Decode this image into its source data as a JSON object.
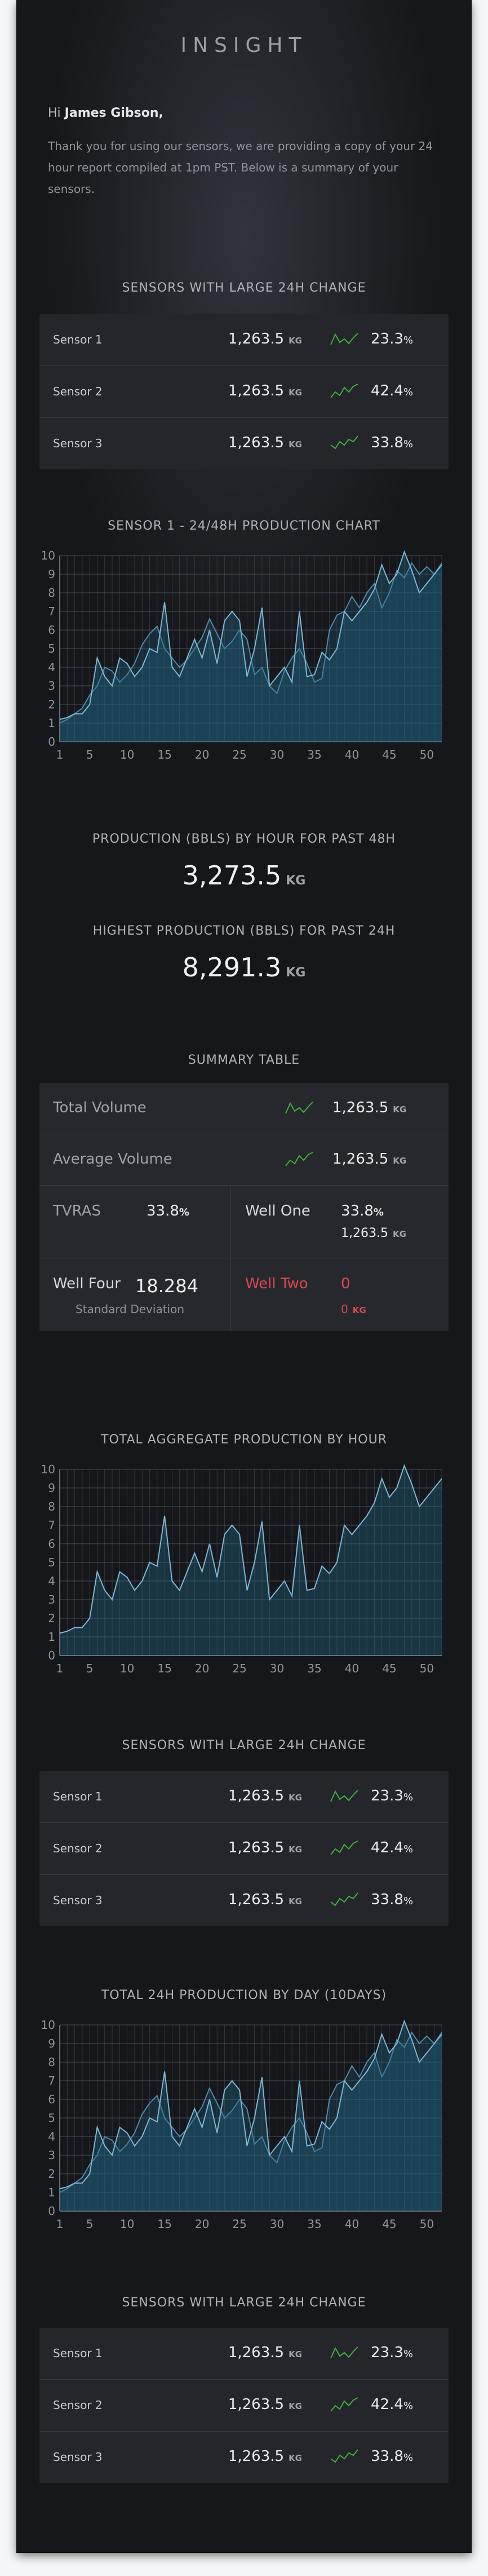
{
  "brand": "INSIGHT",
  "greeting": {
    "prefix": "Hi",
    "name": "James Gibson,"
  },
  "intro": "Thank you for using our sensors, we are providing a copy of your 24 hour report compiled at 1pm PST. Below is a summary of your sensors.",
  "sections": {
    "s1": "SENSORS WITH LARGE 24H CHANGE",
    "chart1": "SENSOR 1 - 24/48H PRODUCTION CHART",
    "prod48": "PRODUCTION (BBLS) BY HOUR FOR PAST 48H",
    "high24": "HIGHEST PRODUCTION (BBLS) FOR PAST 24H",
    "summary": "SUMMARY TABLE",
    "chart2": "TOTAL AGGREGATE PRODUCTION BY HOUR",
    "s2": "SENSORS WITH LARGE 24H CHANGE",
    "chart3": "TOTAL 24H PRODUCTION BY DAY (10DAYS)",
    "s3": "SENSORS WITH LARGE 24H CHANGE"
  },
  "unit": "KG",
  "percent_sign": "%",
  "sensors": [
    {
      "name": "Sensor 1",
      "value": "1,263.5",
      "pct": "23.3"
    },
    {
      "name": "Sensor 2",
      "value": "1,263.5",
      "pct": "42.4"
    },
    {
      "name": "Sensor 3",
      "value": "1,263.5",
      "pct": "33.8"
    }
  ],
  "stats": {
    "prod48_value": "3,273.5",
    "high24_value": "8,291.3"
  },
  "summary": {
    "total_volume_label": "Total Volume",
    "total_volume_value": "1,263.5",
    "average_volume_label": "Average Volume",
    "average_volume_value": "1,263.5",
    "tvras_label": "TVRAS",
    "tvras_value": "33.8",
    "well_one_label": "Well One",
    "well_one_pct": "33.8",
    "well_one_value": "1,263.5",
    "well_four_label": "Well Four",
    "well_four_value": "18.284",
    "well_four_sub": "Standard Deviation",
    "well_two_label": "Well Two",
    "well_two_value": "0",
    "well_two_sub": "0"
  },
  "colors": {
    "background": "#16171b",
    "line": "#6fa9c9",
    "fill": "#1d4a5e",
    "green": "#3fae3a",
    "red": "#d9484f",
    "grid": "#3a3d44"
  },
  "chart_data": [
    {
      "type": "area",
      "title": "SENSOR 1 - 24/48H PRODUCTION CHART",
      "xlim": [
        1,
        52
      ],
      "ylim": [
        0,
        10
      ],
      "x_ticks": [
        1,
        5,
        10,
        15,
        20,
        25,
        30,
        35,
        40,
        45,
        50
      ],
      "y_ticks": [
        0,
        1,
        2,
        3,
        4,
        5,
        6,
        7,
        8,
        9,
        10
      ],
      "series": [
        {
          "values": [
            1.2,
            1.3,
            1.5,
            1.5,
            2.0,
            4.5,
            3.5,
            3.0,
            4.5,
            4.2,
            3.5,
            4.0,
            5.0,
            4.8,
            7.5,
            4.0,
            3.5,
            4.5,
            5.5,
            4.5,
            6.0,
            4.2,
            6.5,
            7.0,
            6.5,
            3.5,
            5.0,
            7.2,
            3.0,
            3.5,
            4.0,
            3.2,
            7.0,
            3.5,
            3.6,
            4.8,
            4.4,
            5.0,
            7.0,
            6.5,
            7.0,
            7.5,
            8.2,
            9.5,
            8.5,
            9.0,
            10.2,
            9.2,
            8.0,
            8.5,
            9.0,
            9.5
          ]
        },
        {
          "values": [
            1.0,
            1.2,
            1.5,
            1.8,
            2.5,
            3.0,
            4.0,
            3.8,
            3.2,
            3.6,
            4.2,
            5.2,
            5.8,
            6.2,
            5.0,
            4.5,
            4.0,
            4.4,
            5.0,
            5.6,
            6.6,
            5.8,
            5.0,
            5.4,
            6.0,
            5.5,
            3.6,
            4.0,
            3.0,
            2.6,
            3.8,
            4.5,
            5.0,
            4.2,
            3.2,
            3.4,
            6.0,
            6.8,
            7.0,
            7.8,
            7.2,
            8.0,
            8.5,
            7.2,
            8.0,
            9.2,
            8.8,
            9.6,
            9.0,
            9.4,
            9.0,
            9.6
          ]
        }
      ]
    },
    {
      "type": "area",
      "title": "TOTAL AGGREGATE PRODUCTION BY HOUR",
      "xlim": [
        1,
        52
      ],
      "ylim": [
        0,
        10
      ],
      "x_ticks": [
        1,
        5,
        10,
        15,
        20,
        25,
        30,
        35,
        40,
        45,
        50
      ],
      "y_ticks": [
        0,
        1,
        2,
        3,
        4,
        5,
        6,
        7,
        8,
        9,
        10
      ],
      "series": [
        {
          "values": [
            1.2,
            1.3,
            1.5,
            1.5,
            2.0,
            4.5,
            3.5,
            3.0,
            4.5,
            4.2,
            3.5,
            4.0,
            5.0,
            4.8,
            7.5,
            4.0,
            3.5,
            4.5,
            5.5,
            4.5,
            6.0,
            4.2,
            6.5,
            7.0,
            6.5,
            3.5,
            5.0,
            7.2,
            3.0,
            3.5,
            4.0,
            3.2,
            7.0,
            3.5,
            3.6,
            4.8,
            4.4,
            5.0,
            7.0,
            6.5,
            7.0,
            7.5,
            8.2,
            9.5,
            8.5,
            9.0,
            10.2,
            9.2,
            8.0,
            8.5,
            9.0,
            9.5
          ]
        }
      ]
    },
    {
      "type": "area",
      "title": "TOTAL 24H PRODUCTION BY DAY (10DAYS)",
      "xlim": [
        1,
        52
      ],
      "ylim": [
        0,
        10
      ],
      "x_ticks": [
        1,
        5,
        10,
        15,
        20,
        25,
        30,
        35,
        40,
        45,
        50
      ],
      "y_ticks": [
        0,
        1,
        2,
        3,
        4,
        5,
        6,
        7,
        8,
        9,
        10
      ],
      "series": [
        {
          "values": [
            1.2,
            1.3,
            1.5,
            1.5,
            2.0,
            4.5,
            3.5,
            3.0,
            4.5,
            4.2,
            3.5,
            4.0,
            5.0,
            4.8,
            7.5,
            4.0,
            3.5,
            4.5,
            5.5,
            4.5,
            6.0,
            4.2,
            6.5,
            7.0,
            6.5,
            3.5,
            5.0,
            7.2,
            3.0,
            3.5,
            4.0,
            3.2,
            7.0,
            3.5,
            3.6,
            4.8,
            4.4,
            5.0,
            7.0,
            6.5,
            7.0,
            7.5,
            8.2,
            9.5,
            8.5,
            9.0,
            10.2,
            9.2,
            8.0,
            8.5,
            9.0,
            9.5
          ]
        },
        {
          "values": [
            1.0,
            1.2,
            1.5,
            1.8,
            2.5,
            3.0,
            4.0,
            3.8,
            3.2,
            3.6,
            4.2,
            5.2,
            5.8,
            6.2,
            5.0,
            4.5,
            4.0,
            4.4,
            5.0,
            5.6,
            6.6,
            5.8,
            5.0,
            5.4,
            6.0,
            5.5,
            3.6,
            4.0,
            3.0,
            2.6,
            3.8,
            4.5,
            5.0,
            4.2,
            3.2,
            3.4,
            6.0,
            6.8,
            7.0,
            7.8,
            7.2,
            8.0,
            8.5,
            7.2,
            8.0,
            9.2,
            8.8,
            9.6,
            9.0,
            9.4,
            9.0,
            9.6
          ]
        }
      ]
    }
  ]
}
